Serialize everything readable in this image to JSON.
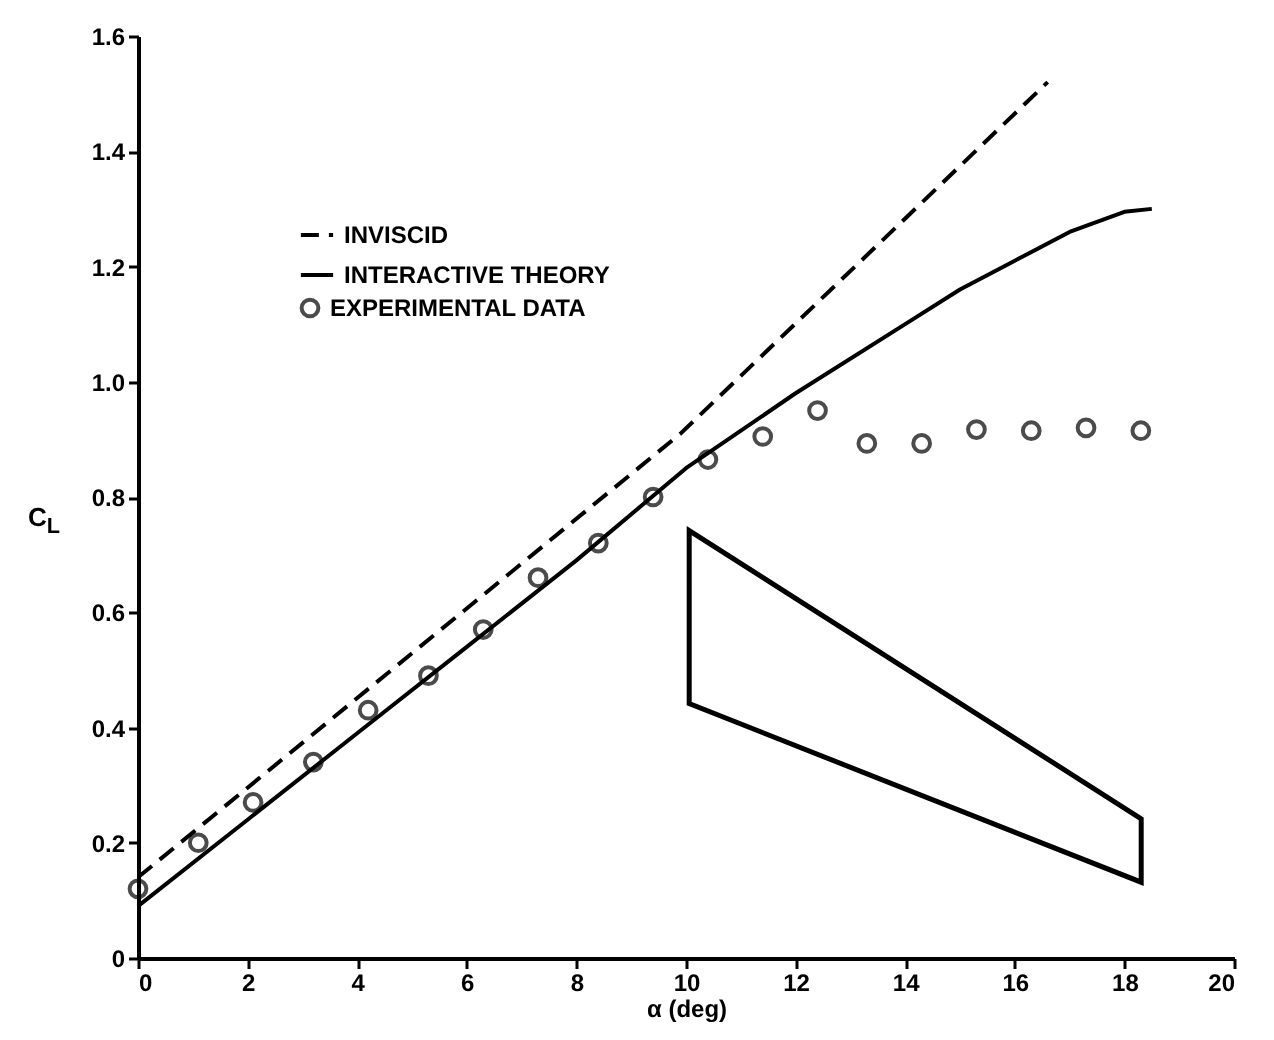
{
  "chart_data": {
    "type": "line",
    "xlabel": "α (deg)",
    "ylabel": "C$_{L}$",
    "xlim": [
      0,
      20
    ],
    "xticks": [
      0,
      2,
      4,
      6,
      8,
      10,
      12,
      14,
      16,
      18,
      20
    ],
    "ylim": [
      0,
      1.6
    ],
    "yticks": [
      0,
      0.2,
      0.4,
      0.6,
      0.8,
      {
        "value": 1,
        "label": "1.0"
      },
      1.2,
      1.4,
      1.6
    ],
    "grid": false,
    "legend": "top left",
    "series": [
      {
        "name": "INVISCID",
        "type": "line",
        "line_style": "dashed",
        "color": "#000000",
        "x": [
          0,
          9.9,
          16.6
        ],
        "values": [
          0.14,
          0.91,
          1.52
        ]
      },
      {
        "name": "INTERACTIVE THEORY",
        "type": "line",
        "line_style": "solid",
        "color": "#000000",
        "x": [
          0,
          2,
          4,
          6,
          8,
          10,
          12,
          14,
          15,
          16,
          17,
          18,
          18.5
        ],
        "values": [
          0.09,
          0.24,
          0.39,
          0.54,
          0.69,
          0.85,
          0.98,
          1.1,
          1.16,
          1.21,
          1.26,
          1.295,
          1.3
        ]
      },
      {
        "name": "EXPERIMENTAL DATA",
        "type": "scatter",
        "marker": "circle",
        "color": "#000000",
        "x": [
          0,
          1.1,
          2.1,
          3.2,
          4.2,
          5.3,
          6.3,
          7.3,
          8.4,
          9.4,
          10.4,
          11.4,
          12.4,
          13.3,
          14.3,
          15.3,
          16.3,
          17.3,
          18.3
        ],
        "values": [
          0.12,
          0.2,
          0.27,
          0.34,
          0.43,
          0.49,
          0.57,
          0.66,
          0.72,
          0.8,
          0.865,
          0.905,
          0.95,
          0.893,
          0.893,
          0.917,
          0.915,
          0.92,
          0.915
        ]
      }
    ]
  }
}
